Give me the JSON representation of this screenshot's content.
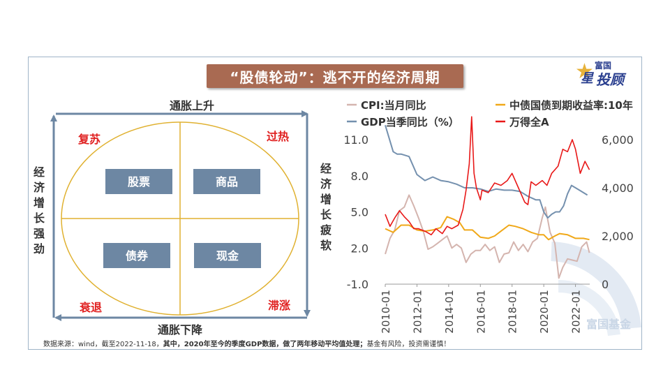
{
  "banner": {
    "title": "“股债轮动”：逃不开的经济周期"
  },
  "logo": {
    "top_text": "富国",
    "main_text": "投顾",
    "star_text": "星"
  },
  "watermark": {
    "text": "富国基金"
  },
  "footer": {
    "part1": "数据来源：wind，截至2022-11-18，",
    "part2": "其中，2020年至今的季度GDP数据，做了两年移动平均值处理；",
    "part3": "基金有风险，投资需谨慎！"
  },
  "clock": {
    "top_label": "通胀上升",
    "bottom_label": "通胀下降",
    "left_label": [
      "经",
      "济",
      "增",
      "长",
      "强",
      "劲"
    ],
    "right_label": [
      "经",
      "济",
      "增",
      "长",
      "疲",
      "软"
    ],
    "quadrants": {
      "top_left": "复苏",
      "top_right": "过热",
      "bottom_left": "衰退",
      "bottom_right": "滞涨"
    },
    "assets": {
      "top_left": "股票",
      "top_right": "商品",
      "bottom_left": "债券",
      "bottom_right": "现金"
    },
    "colors": {
      "arrow": "#6d87a3",
      "ellipse": "#e0b130",
      "asset_box": "#6d87a3",
      "quadrant_text": "#e02020"
    }
  },
  "chart_data": {
    "type": "line",
    "x_ticks": [
      "2010-01",
      "2012-01",
      "2014-01",
      "2016-01",
      "2018-01",
      "2020-01",
      "2022-01"
    ],
    "y_left": {
      "ticks": [
        "11.0",
        "8.0",
        "5.0",
        "2.0",
        "-1.0"
      ],
      "range": [
        -1,
        11
      ]
    },
    "y_right": {
      "ticks": [
        "6,000",
        "4,000",
        "2,000",
        "0"
      ],
      "range": [
        0,
        6000
      ]
    },
    "legend": [
      {
        "name": "CPI:当月同比",
        "color": "#d4b4ae"
      },
      {
        "name": "中债国债到期收益率:10年",
        "color": "#f0a818"
      },
      {
        "name": "GDP当季同比（%）",
        "color": "#7490ae"
      },
      {
        "name": "万得全A",
        "color": "#e81818"
      }
    ],
    "series": [
      {
        "name": "CPI:当月同比",
        "axis": "left",
        "color": "#d4b4ae",
        "x": [
          2010.0,
          2010.3,
          2010.6,
          2010.9,
          2011.2,
          2011.5,
          2011.8,
          2012.1,
          2012.4,
          2012.7,
          2013.0,
          2013.3,
          2013.6,
          2013.9,
          2014.2,
          2014.5,
          2014.8,
          2015.1,
          2015.4,
          2015.7,
          2016.0,
          2016.3,
          2016.6,
          2016.9,
          2017.2,
          2017.5,
          2017.8,
          2018.1,
          2018.4,
          2018.7,
          2019.0,
          2019.3,
          2019.6,
          2019.9,
          2020.1,
          2020.4,
          2020.7,
          2020.95,
          2021.2,
          2021.5,
          2021.8,
          2022.1,
          2022.4,
          2022.7,
          2022.88
        ],
        "values": [
          1.5,
          2.8,
          3.5,
          5.1,
          5.4,
          6.4,
          5.5,
          4.5,
          3.4,
          1.9,
          2.1,
          2.4,
          2.7,
          3.0,
          2.0,
          2.3,
          2.0,
          0.8,
          1.5,
          1.8,
          1.8,
          2.3,
          1.8,
          2.1,
          0.8,
          1.5,
          1.6,
          2.5,
          1.8,
          2.3,
          1.7,
          2.5,
          2.8,
          4.5,
          5.4,
          3.3,
          2.4,
          -0.5,
          0.4,
          1.1,
          1.0,
          0.9,
          2.1,
          2.5,
          1.6
        ]
      },
      {
        "name": "中债国债到期收益率:10年",
        "axis": "left",
        "color": "#f0a818",
        "x": [
          2010.0,
          2010.5,
          2011.0,
          2011.5,
          2012.0,
          2012.5,
          2013.0,
          2013.5,
          2013.9,
          2014.3,
          2014.7,
          2015.0,
          2015.5,
          2016.0,
          2016.5,
          2016.9,
          2017.3,
          2017.8,
          2018.2,
          2018.7,
          2019.2,
          2019.7,
          2020.0,
          2020.3,
          2020.7,
          2021.0,
          2021.5,
          2022.0,
          2022.5,
          2022.88
        ],
        "values": [
          3.6,
          3.3,
          3.9,
          3.9,
          3.5,
          3.4,
          3.5,
          3.7,
          4.6,
          4.4,
          4.1,
          3.5,
          3.5,
          2.9,
          2.8,
          3.0,
          3.4,
          3.9,
          3.8,
          3.6,
          3.3,
          3.1,
          3.1,
          2.7,
          3.0,
          3.2,
          3.1,
          2.8,
          2.8,
          2.7
        ]
      },
      {
        "name": "GDP当季同比（%）",
        "axis": "left",
        "color": "#7490ae",
        "x": [
          2010.0,
          2010.25,
          2010.5,
          2010.75,
          2011.0,
          2011.5,
          2012.0,
          2012.5,
          2013.0,
          2013.5,
          2014.0,
          2014.5,
          2015.0,
          2015.5,
          2016.0,
          2016.5,
          2017.0,
          2017.5,
          2018.0,
          2018.5,
          2019.0,
          2019.5,
          2019.75,
          2020.0,
          2020.25,
          2020.5,
          2020.75,
          2021.0,
          2021.25,
          2021.5,
          2021.75,
          2022.0,
          2022.25,
          2022.5,
          2022.75
        ],
        "values": [
          12.2,
          11.1,
          10.0,
          9.8,
          9.8,
          9.6,
          8.1,
          7.6,
          7.9,
          7.6,
          7.5,
          7.3,
          7.0,
          7.0,
          6.9,
          6.7,
          6.9,
          6.8,
          6.8,
          6.7,
          6.3,
          6.0,
          6.0,
          5.0,
          4.5,
          4.8,
          5.0,
          5.0,
          5.5,
          6.5,
          7.2,
          7.0,
          6.8,
          6.6,
          6.4
        ]
      },
      {
        "name": "万得全A",
        "axis": "right",
        "color": "#e81818",
        "x": [
          2010.0,
          2010.3,
          2010.6,
          2010.9,
          2011.2,
          2011.5,
          2011.8,
          2012.1,
          2012.5,
          2012.9,
          2013.2,
          2013.6,
          2013.9,
          2014.2,
          2014.6,
          2014.9,
          2015.1,
          2015.3,
          2015.45,
          2015.5,
          2015.6,
          2015.75,
          2016.0,
          2016.1,
          2016.5,
          2016.9,
          2017.3,
          2017.7,
          2018.0,
          2018.4,
          2018.8,
          2019.0,
          2019.2,
          2019.5,
          2019.9,
          2020.2,
          2020.5,
          2020.9,
          2021.2,
          2021.5,
          2021.8,
          2022.0,
          2022.3,
          2022.6,
          2022.88
        ],
        "values": [
          2900,
          2400,
          2750,
          3050,
          2800,
          2600,
          2300,
          2300,
          2200,
          2050,
          2300,
          2100,
          2400,
          2300,
          2450,
          3100,
          3900,
          5000,
          6950,
          6200,
          4600,
          4000,
          3500,
          3900,
          3800,
          4200,
          4100,
          4300,
          4600,
          4000,
          3400,
          3300,
          4250,
          4100,
          4300,
          4100,
          4600,
          4900,
          5600,
          5500,
          6000,
          5600,
          4600,
          5100,
          4750
        ]
      }
    ]
  }
}
